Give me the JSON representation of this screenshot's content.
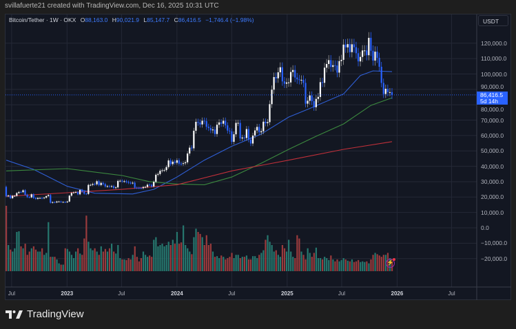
{
  "credit": "svillafuerte21 created with TradingView.com, Dec 16, 2025 10:31 UTC",
  "legend": {
    "symbol": "Bitcoin/Tether · 1W · OKX",
    "open_label": "O",
    "open": "88,163.0",
    "high_label": "H",
    "high": "90,021.9",
    "low_label": "L",
    "low": "85,147.7",
    "close_label": "C",
    "close": "86,416.5",
    "change": "−1,746.4 (−1.98%)"
  },
  "currency": "USDT",
  "price_axis": [
    "120,000.0",
    "110,000.0",
    "100,000.0",
    "90,000.0",
    "80,000.0",
    "70,000.0",
    "60,000.0",
    "50,000.0",
    "40,000.0",
    "30,000.0",
    "20,000.0",
    "10,000.0",
    "0.0",
    "−10,000.0",
    "−20,000.0"
  ],
  "last_price": {
    "value": "86,416.5",
    "countdown": "5d 14h"
  },
  "time_axis": [
    {
      "label": "Jul",
      "year": false,
      "date": "2022-07-01"
    },
    {
      "label": "2023",
      "year": true,
      "date": "2023-01-01"
    },
    {
      "label": "Jul",
      "year": false,
      "date": "2023-07-01"
    },
    {
      "label": "2024",
      "year": true,
      "date": "2024-01-01"
    },
    {
      "label": "Jul",
      "year": false,
      "date": "2024-07-01"
    },
    {
      "label": "2025",
      "year": true,
      "date": "2025-01-01"
    },
    {
      "label": "Jul",
      "year": false,
      "date": "2025-07-01"
    },
    {
      "label": "2026",
      "year": true,
      "date": "2026-01-01"
    },
    {
      "label": "Jul",
      "year": false,
      "date": "2026-07-01"
    }
  ],
  "brand": "TradingView",
  "colors": {
    "up": "#ffffff",
    "down": "#2962ff",
    "vol_up": "#26786f",
    "vol_down": "#9a3b3d",
    "ma_fast": "#2f5fd6",
    "ma_mid": "#3c8a3f",
    "ma_slow": "#c2303a",
    "accent": "#2962ff"
  },
  "chart_data": {
    "type": "candlestick",
    "interval": "1W",
    "start_week": "2022-06-13",
    "first_open": 26.6,
    "unit": "thousand USDT",
    "closes": [
      20.5,
      21.0,
      19.3,
      20.8,
      20.8,
      22.6,
      23.3,
      23.2,
      24.4,
      21.5,
      20.0,
      19.8,
      21.8,
      19.4,
      18.8,
      19.4,
      19.4,
      19.2,
      19.6,
      20.6,
      21.3,
      16.3,
      16.7,
      16.5,
      17.1,
      17.1,
      16.8,
      16.8,
      16.6,
      17.1,
      20.9,
      22.7,
      23.0,
      23.3,
      21.8,
      24.6,
      23.5,
      22.2,
      22.0,
      27.9,
      27.9,
      28.5,
      28.3,
      30.3,
      27.8,
      29.2,
      28.4,
      26.9,
      27.1,
      26.9,
      27.1,
      25.9,
      26.3,
      30.5,
      30.6,
      30.2,
      30.3,
      29.8,
      29.3,
      29.1,
      29.3,
      26.1,
      26.0,
      25.9,
      25.8,
      26.5,
      26.6,
      28.0,
      27.9,
      26.9,
      29.9,
      34.5,
      35.0,
      37.1,
      37.4,
      37.5,
      39.5,
      43.8,
      41.4,
      43.0,
      42.3,
      43.9,
      41.7,
      41.6,
      42.0,
      42.6,
      48.3,
      52.1,
      51.7,
      63.1,
      68.9,
      68.4,
      67.2,
      69.6,
      69.4,
      65.7,
      64.9,
      63.4,
      63.9,
      61.0,
      67.0,
      68.5,
      67.7,
      69.6,
      66.6,
      63.2,
      62.7,
      55.9,
      60.8,
      68.2,
      68.2,
      58.1,
      58.7,
      58.4,
      64.2,
      57.3,
      54.8,
      60.0,
      63.3,
      65.6,
      62.1,
      62.8,
      69.0,
      68.0,
      68.7,
      80.4,
      89.8,
      98.0,
      97.2,
      101.1,
      104.4,
      95.2,
      93.7,
      94.5,
      94.5,
      101.3,
      102.6,
      97.7,
      96.5,
      96.1,
      96.2,
      94.2,
      80.7,
      82.6,
      86.1,
      82.3,
      78.4,
      83.8,
      85.1,
      94.7,
      94.3,
      104.1,
      106.5,
      109.0,
      104.6,
      105.7,
      105.5,
      100.9,
      108.4,
      109.2,
      119.1,
      117.3,
      119.4,
      114.2,
      119.3,
      117.4,
      113.5,
      108.2,
      111.1,
      115.3,
      115.3,
      112.2,
      123.5,
      115.1,
      108.7,
      114.5,
      110.5,
      104.7,
      94.2,
      87.0,
      90.4,
      88.2,
      88.2,
      86.4
    ],
    "volume_relative": [
      100,
      40,
      33,
      30,
      35,
      60,
      61,
      38,
      35,
      42,
      25,
      30,
      35,
      38,
      33,
      30,
      30,
      35,
      25,
      28,
      75,
      22,
      22,
      22,
      18,
      12,
      10,
      10,
      35,
      34,
      30,
      25,
      20,
      30,
      35,
      27,
      25,
      50,
      85,
      45,
      35,
      32,
      35,
      30,
      25,
      38,
      30,
      34,
      30,
      35,
      42,
      30,
      27,
      40,
      20,
      18,
      18,
      17,
      20,
      18,
      25,
      38,
      22,
      15,
      20,
      30,
      25,
      22,
      24,
      22,
      48,
      52,
      38,
      40,
      42,
      38,
      40,
      45,
      40,
      48,
      42,
      60,
      42,
      44,
      70,
      40,
      35,
      30,
      26,
      52,
      65,
      60,
      57,
      52,
      40,
      55,
      40,
      42,
      30,
      22,
      23,
      20,
      24,
      22,
      18,
      20,
      22,
      28,
      20,
      25,
      25,
      20,
      22,
      22,
      24,
      18,
      18,
      23,
      23,
      20,
      25,
      28,
      32,
      48,
      55,
      45,
      40,
      30,
      32,
      25,
      22,
      40,
      35,
      30,
      48,
      30,
      22,
      20,
      55,
      50,
      30,
      25,
      18,
      35,
      28,
      22,
      28,
      36,
      20,
      20,
      18,
      22,
      20,
      17,
      24,
      18,
      15,
      18,
      15,
      17,
      20,
      18,
      16,
      15,
      18,
      14,
      15,
      17,
      14,
      15,
      14,
      15,
      12,
      18,
      25,
      28,
      26,
      24,
      22,
      25,
      25,
      28,
      20,
      15
    ],
    "moving_averages": [
      {
        "color_key": "ma_fast",
        "points": [
          [
            "2022-06-13",
            44
          ],
          [
            "2022-09-12",
            38
          ],
          [
            "2023-01-02",
            27
          ],
          [
            "2023-04-03",
            22.5
          ],
          [
            "2023-08-07",
            22
          ],
          [
            "2023-10-16",
            25
          ],
          [
            "2024-01-01",
            33
          ],
          [
            "2024-04-01",
            44
          ],
          [
            "2024-07-01",
            53
          ],
          [
            "2024-10-07",
            61
          ],
          [
            "2025-01-06",
            72
          ],
          [
            "2025-03-10",
            77
          ],
          [
            "2025-07-07",
            87
          ],
          [
            "2025-09-01",
            99
          ],
          [
            "2025-10-13",
            102
          ],
          [
            "2025-12-15",
            101.5
          ]
        ]
      },
      {
        "color_key": "ma_mid",
        "points": [
          [
            "2022-06-13",
            37
          ],
          [
            "2023-01-02",
            38.5
          ],
          [
            "2023-07-03",
            34
          ],
          [
            "2023-10-02",
            30
          ],
          [
            "2024-01-01",
            28.5
          ],
          [
            "2024-04-01",
            28
          ],
          [
            "2024-07-01",
            33
          ],
          [
            "2024-10-07",
            42
          ],
          [
            "2025-01-06",
            51
          ],
          [
            "2025-04-07",
            59.5
          ],
          [
            "2025-07-07",
            67.5
          ],
          [
            "2025-10-06",
            79.6
          ],
          [
            "2025-12-15",
            84.5
          ]
        ]
      },
      {
        "color_key": "ma_slow",
        "points": [
          [
            "2022-06-13",
            20.5
          ],
          [
            "2023-01-02",
            22.8
          ],
          [
            "2023-07-03",
            25
          ],
          [
            "2024-01-01",
            28
          ],
          [
            "2024-07-01",
            37
          ],
          [
            "2025-01-06",
            44
          ],
          [
            "2025-07-07",
            51
          ],
          [
            "2025-12-15",
            56
          ]
        ]
      }
    ],
    "y_range": [
      -20000,
      125000
    ],
    "grid": true
  }
}
